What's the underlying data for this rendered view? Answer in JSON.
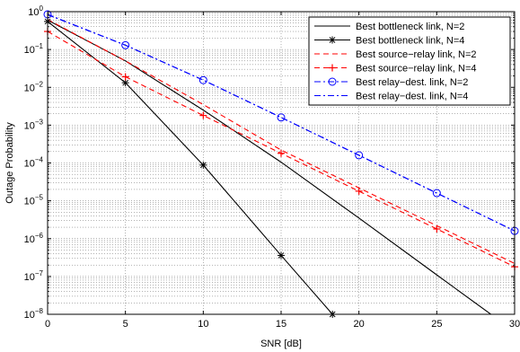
{
  "chart_data": {
    "type": "line",
    "title": "",
    "xlabel": "SNR [dB]",
    "ylabel": "Outage Probability",
    "xscale": "linear",
    "yscale": "log",
    "xlim": [
      0,
      30
    ],
    "ylim": [
      1e-08,
      1
    ],
    "grid": true,
    "legend_position": "top-right",
    "x_ticks": [
      0,
      5,
      10,
      15,
      20,
      25,
      30
    ],
    "x_tick_labels": [
      "0",
      "5",
      "10",
      "15",
      "20",
      "25",
      "30"
    ],
    "y_ticks": [
      1e-08,
      1e-07,
      1e-06,
      1e-05,
      0.0001,
      0.001,
      0.01,
      0.1,
      1
    ],
    "y_tick_labels": [
      {
        "base": "10",
        "exp": "−8"
      },
      {
        "base": "10",
        "exp": "−7"
      },
      {
        "base": "10",
        "exp": "−6"
      },
      {
        "base": "10",
        "exp": "−5"
      },
      {
        "base": "10",
        "exp": "−4"
      },
      {
        "base": "10",
        "exp": "−3"
      },
      {
        "base": "10",
        "exp": "−2"
      },
      {
        "base": "10",
        "exp": "−1"
      },
      {
        "base": "10",
        "exp": "0"
      }
    ],
    "series": [
      {
        "name": "Best bottleneck link, N=2",
        "color": "#000000",
        "line": "solid",
        "marker": "none",
        "x": [
          0,
          5,
          10,
          15,
          20,
          25,
          30
        ],
        "y": [
          0.6,
          0.05,
          0.0025,
          0.000105,
          3.5e-06,
          1.1e-07,
          3.5e-09
        ]
      },
      {
        "name": "Best bottleneck link, N=4",
        "color": "#000000",
        "line": "solid",
        "marker": "asterisk",
        "x": [
          0,
          5,
          10,
          15,
          18.3
        ],
        "y": [
          0.55,
          0.0132,
          8.8e-05,
          3.6e-07,
          1e-08
        ]
      },
      {
        "name": "Best source−relay link, N=2",
        "color": "#ff0000",
        "line": "dashed",
        "marker": "none",
        "x": [
          0,
          5,
          10,
          15,
          20,
          25,
          30
        ],
        "y": [
          0.62,
          0.05,
          0.0035,
          0.00022,
          2.2e-05,
          2.2e-06,
          2.2e-07
        ]
      },
      {
        "name": "Best source−relay link, N=4",
        "color": "#ff0000",
        "line": "dashed",
        "marker": "plus",
        "x": [
          0,
          5,
          10,
          15,
          20,
          25,
          30
        ],
        "y": [
          0.3,
          0.019,
          0.0018,
          0.00018,
          1.8e-05,
          1.8e-06,
          1.8e-07
        ]
      },
      {
        "name": "Best relay−dest. link, N=2",
        "color": "#0000ff",
        "line": "dashdot",
        "marker": "circle",
        "x": [
          0,
          5,
          10,
          15,
          20,
          25,
          30
        ],
        "y": [
          0.85,
          0.13,
          0.0155,
          0.0016,
          0.00016,
          1.6e-05,
          1.6e-06
        ]
      },
      {
        "name": "Best relay−dest. link, N=4",
        "color": "#0000ff",
        "line": "dashdot",
        "marker": "none",
        "x": [
          0,
          5,
          10,
          15,
          20,
          25,
          30
        ],
        "y": [
          0.83,
          0.13,
          0.0155,
          0.0016,
          0.00016,
          1.6e-05,
          1.6e-06
        ]
      }
    ]
  }
}
